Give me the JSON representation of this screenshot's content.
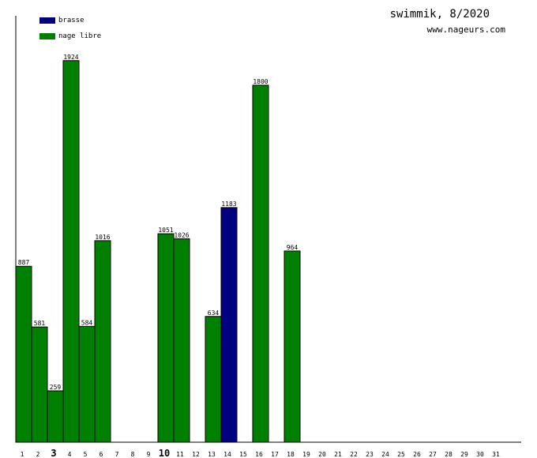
{
  "header": {
    "title": "swimmik, 8/2020",
    "site": "www.nageurs.com"
  },
  "legend": [
    {
      "label": "brasse",
      "color": "#000080"
    },
    {
      "label": "nage libre",
      "color": "#008000"
    }
  ],
  "chart_data": {
    "type": "bar",
    "title": "swimmik, 8/2020",
    "categories": [
      "1",
      "2",
      "3",
      "4",
      "5",
      "6",
      "7",
      "8",
      "9",
      "10",
      "11",
      "12",
      "13",
      "14",
      "15",
      "16",
      "17",
      "18",
      "19",
      "20",
      "21",
      "22",
      "23",
      "24",
      "25",
      "26",
      "27",
      "28",
      "29",
      "30",
      "31"
    ],
    "highlighted_categories": [
      "3",
      "10"
    ],
    "series": [
      {
        "name": "brasse",
        "color": "#000080",
        "values": [
          0,
          0,
          0,
          0,
          0,
          0,
          0,
          0,
          0,
          0,
          0,
          0,
          0,
          1183,
          0,
          0,
          0,
          0,
          0,
          0,
          0,
          0,
          0,
          0,
          0,
          0,
          0,
          0,
          0,
          0,
          0
        ]
      },
      {
        "name": "nage libre",
        "color": "#008000",
        "values": [
          887,
          581,
          259,
          1924,
          584,
          1016,
          0,
          0,
          0,
          1051,
          1026,
          0,
          634,
          0,
          0,
          1800,
          0,
          964,
          0,
          0,
          0,
          0,
          0,
          0,
          0,
          0,
          0,
          0,
          0,
          0,
          0
        ]
      }
    ],
    "bar_labels": [
      887,
      581,
      259,
      1924,
      584,
      1016,
      null,
      null,
      null,
      1051,
      1026,
      null,
      634,
      1183,
      null,
      1800,
      null,
      964,
      null,
      null,
      null,
      null,
      null,
      null,
      null,
      null,
      null,
      null,
      null,
      null,
      null
    ],
    "ylim": [
      0,
      2150
    ],
    "grid": false,
    "legend_position": "top-left"
  }
}
